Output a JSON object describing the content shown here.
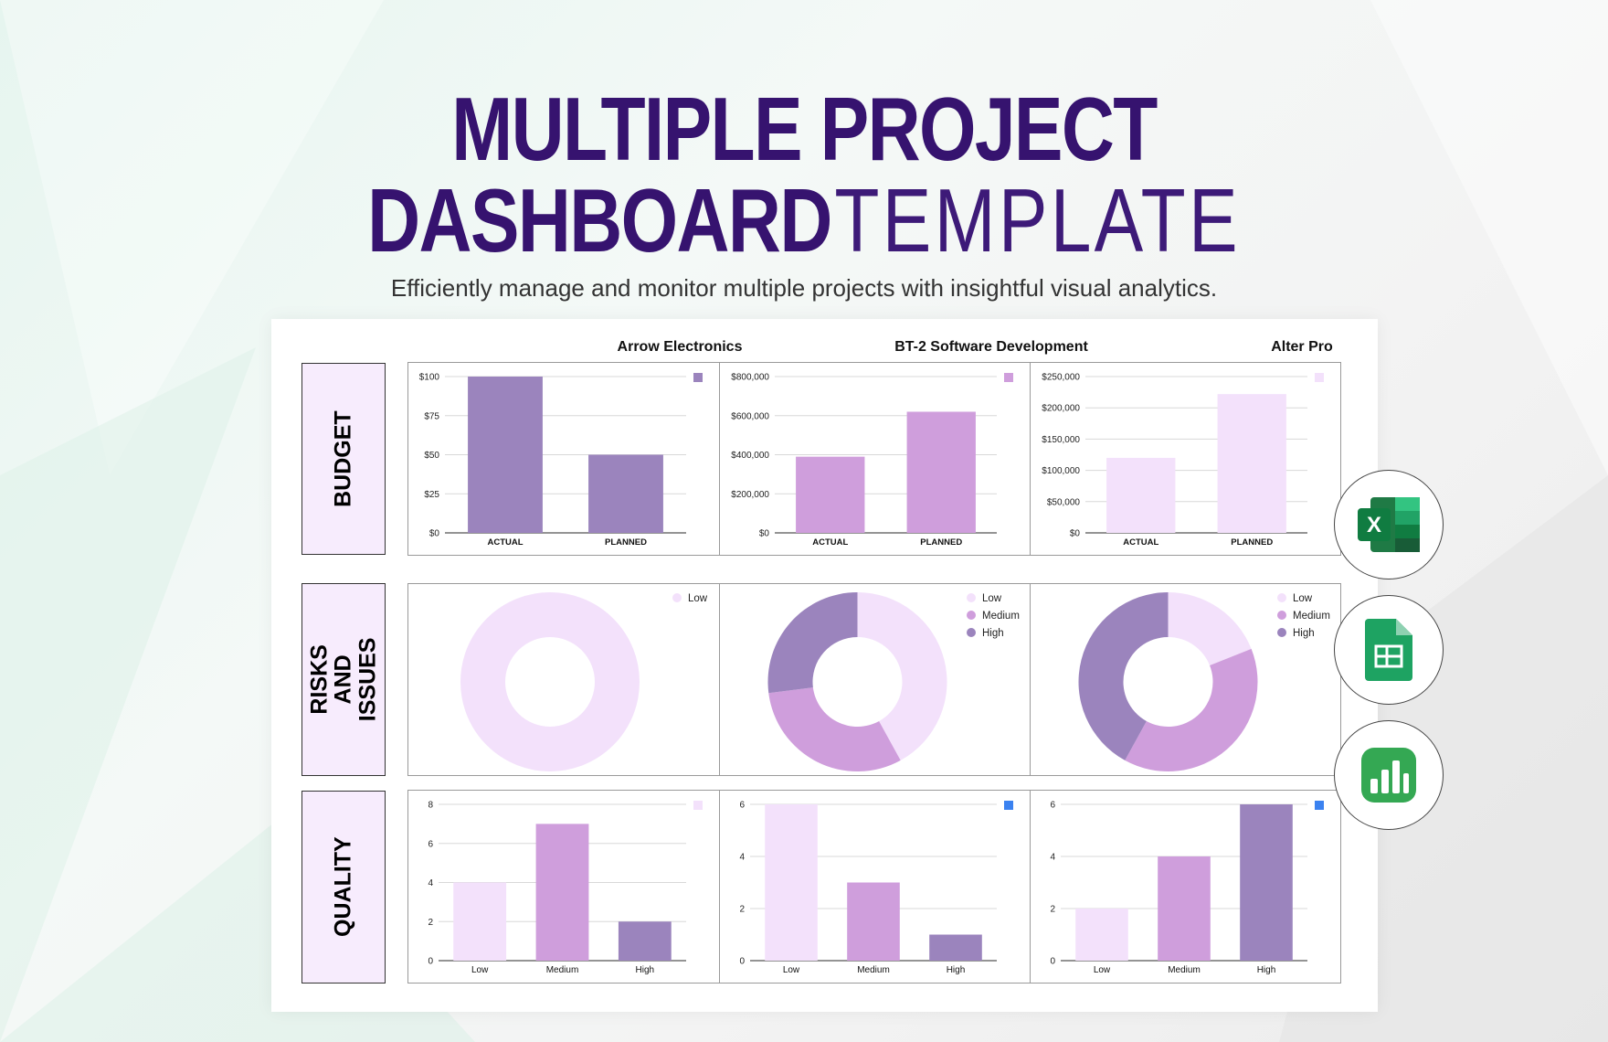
{
  "hero": {
    "title_line1": "MULTIPLE PROJECT",
    "title_line2_bold": "DASHBOARD",
    "title_line2_thin": "TEMPLATE",
    "subtitle": "Efficiently manage and monitor multiple projects with insightful visual analytics."
  },
  "projects": [
    "Arrow Electronics",
    "BT-2 Software Development",
    "Alter Pro"
  ],
  "rows": {
    "budget": "BUDGET",
    "risks": "RISKS AND ISSUES",
    "quality": "QUALITY"
  },
  "apps": [
    {
      "name": "excel-icon",
      "color": "#1f7a45"
    },
    {
      "name": "sheets-icon",
      "color": "#1ea362"
    },
    {
      "name": "numbers-icon",
      "color": "#34a853"
    }
  ],
  "colors": {
    "dark": "#9b84bd",
    "mid": "#cf9edc",
    "light": "#f3e1fb",
    "blue": "#3b82f0",
    "title": "#36136f"
  },
  "chart_data": [
    {
      "id": "budget-0",
      "type": "bar",
      "categories": [
        "ACTUAL",
        "PLANNED"
      ],
      "values": [
        100,
        50
      ],
      "ylim": [
        0,
        100
      ],
      "yticks": [
        0,
        25,
        50,
        75,
        100
      ],
      "ytick_labels": [
        "$0",
        "$25",
        "$50",
        "$75",
        "$100"
      ],
      "colors": [
        "#9b84bd",
        "#9b84bd"
      ],
      "legend_color": "#9b84bd"
    },
    {
      "id": "budget-1",
      "type": "bar",
      "categories": [
        "ACTUAL",
        "PLANNED"
      ],
      "values": [
        390000,
        620000
      ],
      "ylim": [
        0,
        800000
      ],
      "yticks": [
        0,
        200000,
        400000,
        600000,
        800000
      ],
      "ytick_labels": [
        "$0",
        "$200,000",
        "$400,000",
        "$600,000",
        "$800,000"
      ],
      "colors": [
        "#cf9edc",
        "#cf9edc"
      ],
      "legend_color": "#cf9edc"
    },
    {
      "id": "budget-2",
      "type": "bar",
      "categories": [
        "ACTUAL",
        "PLANNED"
      ],
      "values": [
        120000,
        222000
      ],
      "ylim": [
        0,
        250000
      ],
      "yticks": [
        0,
        50000,
        100000,
        150000,
        200000,
        250000
      ],
      "ytick_labels": [
        "$0",
        "$50,000",
        "$100,000",
        "$150,000",
        "$200,000",
        "$250,000"
      ],
      "colors": [
        "#f3e1fb",
        "#f3e1fb"
      ],
      "legend_color": "#f3e1fb"
    },
    {
      "id": "risks-0",
      "type": "pie",
      "donut": true,
      "labels": [
        "Low"
      ],
      "values": [
        1
      ],
      "colors": [
        "#f3e1fb"
      ]
    },
    {
      "id": "risks-1",
      "type": "pie",
      "donut": true,
      "labels": [
        "Low",
        "Medium",
        "High"
      ],
      "values": [
        42,
        31,
        27
      ],
      "colors": [
        "#f3e1fb",
        "#cf9edc",
        "#9b84bd"
      ]
    },
    {
      "id": "risks-2",
      "type": "pie",
      "donut": true,
      "labels": [
        "Low",
        "Medium",
        "High"
      ],
      "values": [
        19,
        39,
        42
      ],
      "colors": [
        "#f3e1fb",
        "#cf9edc",
        "#9b84bd"
      ]
    },
    {
      "id": "quality-0",
      "type": "bar",
      "categories": [
        "Low",
        "Medium",
        "High"
      ],
      "values": [
        4,
        7,
        2
      ],
      "ylim": [
        0,
        8
      ],
      "yticks": [
        0,
        2,
        4,
        6,
        8
      ],
      "ytick_labels": [
        "0",
        "2",
        "4",
        "6",
        "8"
      ],
      "colors": [
        "#f3e1fb",
        "#cf9edc",
        "#9b84bd"
      ],
      "legend_color": "#f3e1fb"
    },
    {
      "id": "quality-1",
      "type": "bar",
      "categories": [
        "Low",
        "Medium",
        "High"
      ],
      "values": [
        6,
        3,
        1
      ],
      "ylim": [
        0,
        6
      ],
      "yticks": [
        0,
        2,
        4,
        6
      ],
      "ytick_labels": [
        "0",
        "2",
        "4",
        "6"
      ],
      "colors": [
        "#f3e1fb",
        "#cf9edc",
        "#9b84bd"
      ],
      "legend_color": "#3b82f0"
    },
    {
      "id": "quality-2",
      "type": "bar",
      "categories": [
        "Low",
        "Medium",
        "High"
      ],
      "values": [
        2,
        4,
        6
      ],
      "ylim": [
        0,
        6
      ],
      "yticks": [
        0,
        2,
        4,
        6
      ],
      "ytick_labels": [
        "0",
        "2",
        "4",
        "6"
      ],
      "colors": [
        "#f3e1fb",
        "#cf9edc",
        "#9b84bd"
      ],
      "legend_color": "#3b82f0"
    }
  ]
}
